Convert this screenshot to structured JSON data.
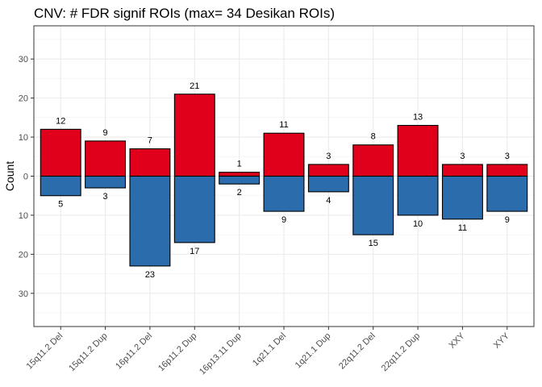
{
  "chart_data": {
    "type": "bar",
    "title": "CNV: # FDR signif ROIs (max= 34 Desikan ROIs)",
    "xlabel": "",
    "ylabel": "Count",
    "categories": [
      "15q11.2 Del",
      "15q11.2 Dup",
      "16p11.2 Del",
      "16p11.2 Dup",
      "16p13.11 Dup",
      "1q21.1 Del",
      "1q21.1 Dup",
      "22q11.2 Del",
      "22q11.2 Dup",
      "XXY",
      "XYY"
    ],
    "series": [
      {
        "color": "#E0001B",
        "direction": "up",
        "values": [
          12,
          9,
          7,
          21,
          1,
          11,
          3,
          8,
          13,
          3,
          3
        ]
      },
      {
        "color": "#2B6CAD",
        "direction": "down",
        "values": [
          5,
          3,
          23,
          17,
          2,
          9,
          4,
          15,
          10,
          11,
          9
        ]
      }
    ],
    "ylim": [
      -38.5,
      38.5
    ],
    "yticks": [
      30,
      20,
      10,
      0,
      10,
      20,
      30
    ],
    "ytick_values": [
      30,
      20,
      10,
      0,
      -10,
      -20,
      -30
    ],
    "grid": true,
    "theme": "bw"
  }
}
